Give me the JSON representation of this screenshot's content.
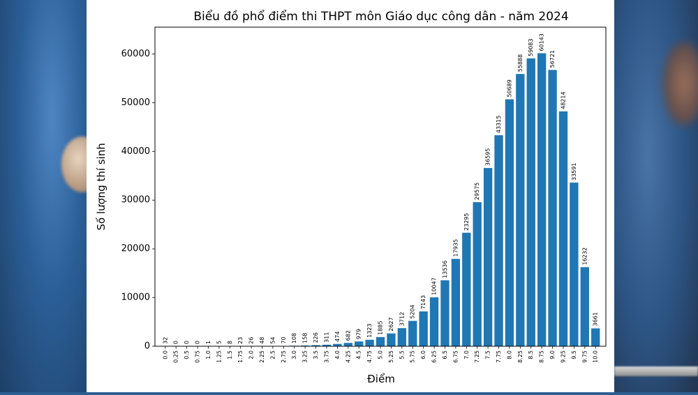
{
  "chart_data": {
    "type": "bar",
    "title": "Biểu đồ phổ điểm thi THPT môn Giáo dục công dân - năm 2024",
    "xlabel": "Điểm",
    "ylabel": "Số lượng thí sinh",
    "categories": [
      "0.0",
      "0.25",
      "0.5",
      "0.75",
      "1.0",
      "1.25",
      "1.5",
      "1.75",
      "2.0",
      "2.25",
      "2.5",
      "2.75",
      "3.0",
      "3.25",
      "3.5",
      "3.75",
      "4.0",
      "4.25",
      "4.5",
      "4.75",
      "5.0",
      "5.25",
      "5.5",
      "5.75",
      "6.0",
      "6.25",
      "6.5",
      "6.75",
      "7.0",
      "7.25",
      "7.5",
      "7.75",
      "8.0",
      "8.25",
      "8.5",
      "8.75",
      "9.0",
      "9.25",
      "9.5",
      "9.75",
      "10.0"
    ],
    "values": [
      32,
      0,
      0,
      0,
      1,
      5,
      8,
      23,
      26,
      48,
      54,
      70,
      108,
      158,
      226,
      311,
      474,
      682,
      979,
      1323,
      1885,
      2627,
      3712,
      5204,
      7143,
      10047,
      13536,
      17935,
      23295,
      29575,
      36595,
      43315,
      50689,
      55888,
      59083,
      60143,
      56721,
      48214,
      33591,
      16232,
      3661
    ],
    "ylim": [
      0,
      65500
    ],
    "yticks": [
      0,
      10000,
      20000,
      30000,
      40000,
      50000,
      60000
    ],
    "bar_color": "#1f77b4",
    "grid": false,
    "legend": "none"
  }
}
